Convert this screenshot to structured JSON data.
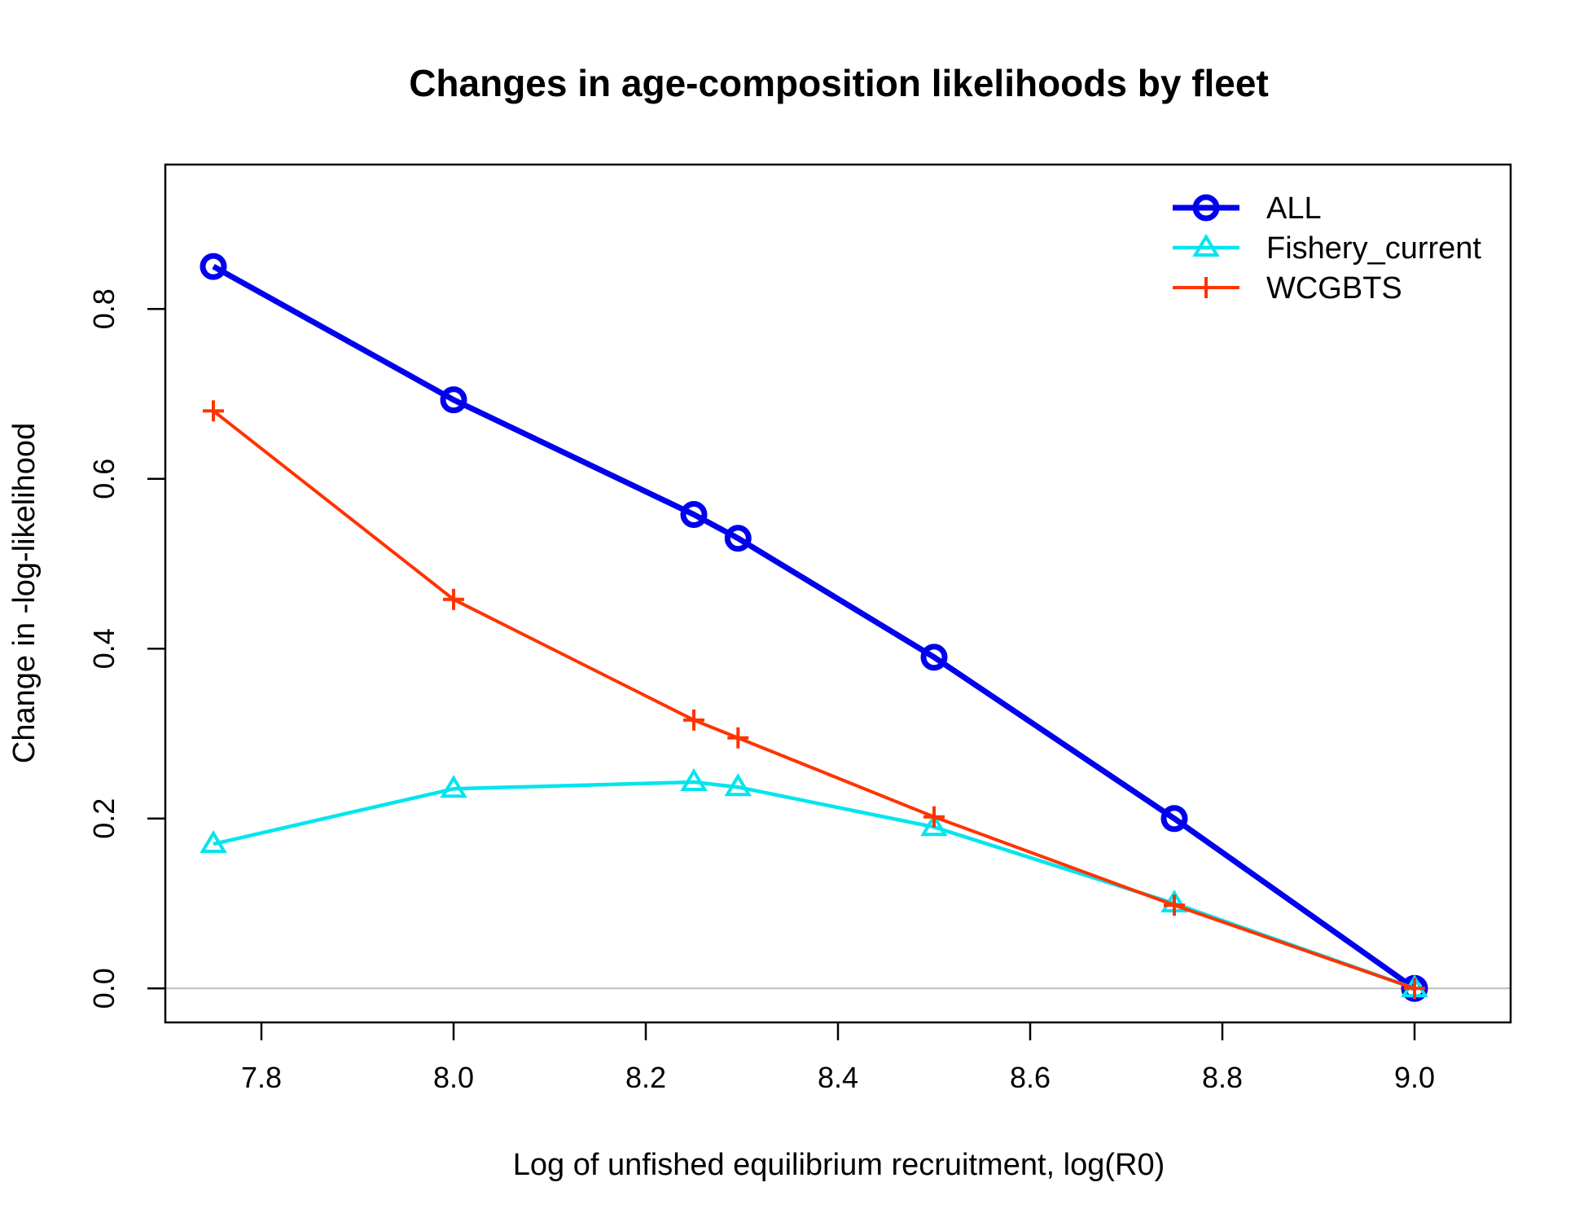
{
  "chart_data": {
    "type": "line",
    "title": "Changes in age-composition likelihoods by fleet",
    "xlabel": "Log of unfished equilibrium recruitment, log(R0)",
    "ylabel": "Change in -log-likelihood",
    "xlim": [
      7.7,
      9.1
    ],
    "ylim": [
      -0.04,
      0.97
    ],
    "x_ticks": [
      "7.8",
      "8.0",
      "8.2",
      "8.4",
      "8.6",
      "8.8",
      "9.0"
    ],
    "y_ticks": [
      "0.0",
      "0.2",
      "0.4",
      "0.6",
      "0.8"
    ],
    "x_tick_values": [
      7.8,
      8.0,
      8.2,
      8.4,
      8.6,
      8.8,
      9.0
    ],
    "y_tick_values": [
      0.0,
      0.2,
      0.4,
      0.6,
      0.8
    ],
    "zero_line": true,
    "grid": false,
    "legend_position": "top-right",
    "series": [
      {
        "name": "ALL",
        "color": "#0000ee",
        "marker": "circle",
        "x": [
          7.75,
          8.0,
          8.25,
          8.296,
          8.5,
          8.75,
          9.0
        ],
        "y": [
          0.85,
          0.693,
          0.558,
          0.53,
          0.39,
          0.2,
          0.0
        ]
      },
      {
        "name": "Fishery_current",
        "color": "#00e5ee",
        "marker": "triangle",
        "x": [
          7.75,
          8.0,
          8.25,
          8.296,
          8.5,
          8.75,
          9.0
        ],
        "y": [
          0.17,
          0.235,
          0.243,
          0.237,
          0.19,
          0.1,
          0.0
        ]
      },
      {
        "name": "WCGBTS",
        "color": "#ff3300",
        "marker": "plus",
        "x": [
          7.75,
          8.0,
          8.25,
          8.296,
          8.5,
          8.75,
          9.0
        ],
        "y": [
          0.68,
          0.458,
          0.316,
          0.295,
          0.202,
          0.098,
          0.0
        ]
      }
    ]
  }
}
